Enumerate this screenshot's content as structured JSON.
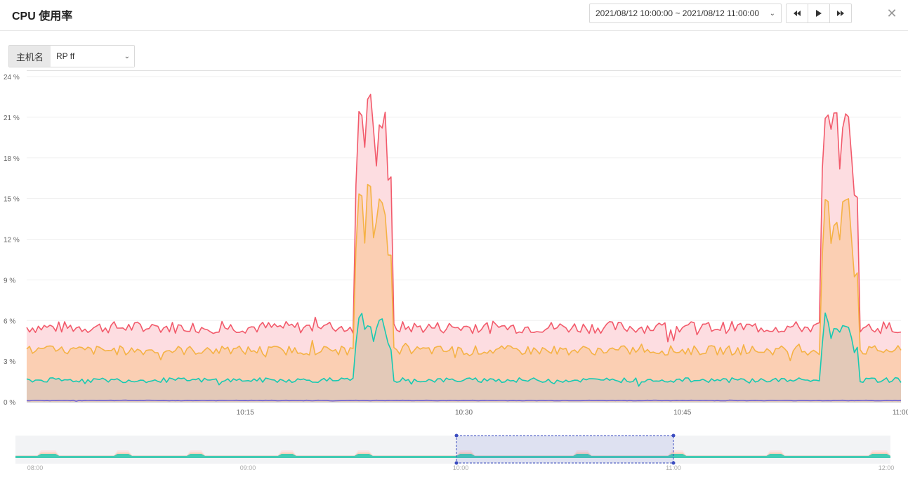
{
  "header": {
    "title": "CPU 使用率",
    "time_range": "2021/08/12 10:00:00 ~ 2021/08/12 11:00:00",
    "controls": [
      "rewind-button",
      "play-button",
      "fast-forward-button"
    ]
  },
  "filter": {
    "label": "主机名",
    "value": "RP    ff"
  },
  "colors": {
    "red": "#f25a6b",
    "orange": "#f5b245",
    "teal": "#17c9b2",
    "purple": "#6c5fd4",
    "fill_red": "#fddde1",
    "fill_orange": "#fbcfb3",
    "fill_teal": "#e3c9b8",
    "selection": "#3b4cc0"
  },
  "chart_data": {
    "type": "area",
    "ylim": [
      0,
      24
    ],
    "y_ticks": [
      0,
      3,
      6,
      9,
      12,
      15,
      18,
      21,
      24
    ],
    "y_tick_labels": [
      "0 %",
      "3 %",
      "6 %",
      "9 %",
      "12 %",
      "15 %",
      "18 %",
      "21 %",
      "24 %"
    ],
    "xlim": [
      "10:00",
      "11:00"
    ],
    "x_tick_labels": [
      "10:15",
      "10:30",
      "10:45",
      "11:00"
    ],
    "grid": true,
    "series": [
      {
        "color": "red",
        "baseline": 5.5,
        "spikes": [
          {
            "start": "10:22:30",
            "end": "10:25:00",
            "values": [
              16.0,
              21.5,
              18.5,
              22.5,
              20.0,
              17.5,
              20.5,
              21.0,
              16.5
            ]
          },
          {
            "start": "10:54:30",
            "end": "10:57:00",
            "values": [
              17.0,
              21.0,
              20.0,
              21.5,
              17.5,
              20.5,
              21.0,
              18.0,
              15.0
            ]
          }
        ]
      },
      {
        "color": "orange",
        "baseline": 3.8,
        "spikes": [
          {
            "start": "10:22:30",
            "end": "10:25:00",
            "values": [
              11.5,
              15.0,
              12.0,
              16.0,
              12.5,
              13.0,
              15.0,
              14.0,
              11.0
            ]
          },
          {
            "start": "10:54:30",
            "end": "10:57:00",
            "values": [
              11.0,
              15.0,
              12.0,
              13.0,
              12.0,
              14.5,
              15.0,
              12.0,
              9.5
            ]
          }
        ]
      },
      {
        "color": "teal",
        "baseline": 1.6,
        "spikes": [
          {
            "start": "10:22:30",
            "end": "10:25:00",
            "values": [
              4.5,
              6.3,
              5.0,
              5.8,
              4.8,
              5.5,
              6.0,
              5.2,
              4.0
            ]
          },
          {
            "start": "10:54:30",
            "end": "10:57:00",
            "values": [
              4.5,
              6.2,
              5.0,
              5.5,
              5.2,
              6.0,
              5.5,
              5.0,
              4.0
            ]
          }
        ]
      },
      {
        "color": "purple",
        "baseline": 0.1,
        "spikes": []
      }
    ]
  },
  "zoom": {
    "x_tick_labels": [
      "08:00",
      "09:00",
      "10:00",
      "11:00",
      "12:00"
    ],
    "selection": [
      "10:00",
      "11:00"
    ]
  }
}
